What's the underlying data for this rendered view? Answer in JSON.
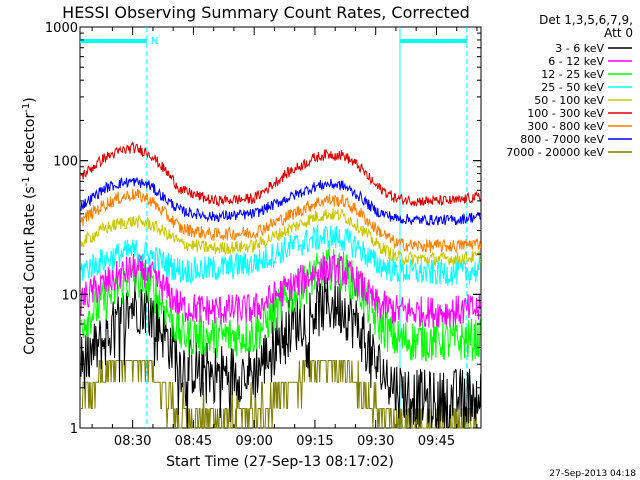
{
  "chart_data": {
    "type": "line",
    "title": "HESSI Observing Summary Count Rates, Corrected",
    "xlabel": "Start Time (27-Sep-13 08:17:02)",
    "ylabel_main": "Corrected Count Rate (s",
    "ylabel_sup1": "-1",
    "ylabel_mid": " detector",
    "ylabel_sup2": "-1",
    "ylabel_end": ")",
    "y_scale": "log",
    "ylim": [
      1,
      1000
    ],
    "x_start_minutes": 497.0,
    "xlim_minutes": [
      497.0,
      596.0
    ],
    "x_ticks": [
      {
        "minutes": 510,
        "label": "08:30"
      },
      {
        "minutes": 525,
        "label": "08:45"
      },
      {
        "minutes": 540,
        "label": "09:00"
      },
      {
        "minutes": 555,
        "label": "09:15"
      },
      {
        "minutes": 570,
        "label": "09:30"
      },
      {
        "minutes": 585,
        "label": "09:45"
      }
    ],
    "y_ticks": [
      {
        "value": 1,
        "label": "1"
      },
      {
        "value": 10,
        "label": "10"
      },
      {
        "value": 100,
        "label": "100"
      },
      {
        "value": 1000,
        "label": "1000"
      }
    ],
    "legend": {
      "placement": "right",
      "header": [
        "Det 1,3,5,6,7,9,",
        "Att 0"
      ]
    },
    "series": [
      {
        "name": "3 - 6 keV",
        "color": "#000000",
        "x_minutes": [
          497,
          503,
          507,
          510,
          514,
          518,
          522,
          530,
          540,
          548,
          555,
          558,
          562,
          566,
          570,
          575,
          580,
          585,
          590,
          594
        ],
        "y": [
          3.0,
          4.5,
          6.5,
          8.5,
          8.0,
          5.0,
          3.0,
          2.6,
          2.6,
          5.5,
          7.5,
          8.5,
          8.0,
          5.5,
          3.0,
          2.0,
          1.7,
          1.6,
          1.7,
          1.8
        ]
      },
      {
        "name": "6 - 12 keV",
        "color": "#ff00ff",
        "x_minutes": [
          497,
          503,
          507,
          510,
          514,
          518,
          522,
          530,
          540,
          548,
          555,
          558,
          562,
          566,
          570,
          575,
          580,
          585,
          590,
          594
        ],
        "y": [
          9.0,
          12.0,
          14.0,
          15.5,
          14.5,
          11.0,
          8.0,
          7.6,
          7.7,
          11.0,
          14.5,
          15.5,
          15.0,
          12.0,
          8.5,
          7.6,
          7.4,
          7.4,
          7.5,
          7.7
        ]
      },
      {
        "name": "12 - 25 keV",
        "color": "#00ff00",
        "x_minutes": [
          497,
          503,
          507,
          510,
          514,
          518,
          522,
          530,
          540,
          548,
          555,
          558,
          562,
          566,
          570,
          575,
          580,
          585,
          590,
          594
        ],
        "y": [
          6.0,
          9.0,
          11.5,
          13.0,
          12.0,
          8.0,
          5.0,
          4.8,
          5.0,
          9.0,
          14.0,
          15.5,
          15.0,
          11.0,
          6.5,
          4.6,
          4.5,
          4.5,
          4.5,
          4.6
        ]
      },
      {
        "name": "25 - 50 keV",
        "color": "#00ffff",
        "x_minutes": [
          497,
          503,
          507,
          510,
          514,
          518,
          522,
          530,
          540,
          548,
          555,
          558,
          562,
          566,
          570,
          575,
          580,
          585,
          590,
          594
        ],
        "y": [
          15.0,
          18.0,
          20.0,
          21.0,
          20.0,
          17.0,
          15.0,
          15.5,
          17.0,
          22.0,
          26.0,
          27.0,
          26.0,
          22.0,
          17.0,
          15.0,
          14.5,
          14.5,
          14.5,
          15.0
        ]
      },
      {
        "name": "50 - 100 keV",
        "color": "#c8c800",
        "x_minutes": [
          497,
          503,
          507,
          510,
          514,
          518,
          522,
          530,
          540,
          548,
          555,
          558,
          562,
          566,
          570,
          575,
          580,
          585,
          590,
          594
        ],
        "y": [
          24.0,
          31.0,
          34.0,
          35.0,
          34.0,
          29.0,
          24.0,
          22.0,
          23.0,
          30.0,
          38.0,
          40.0,
          39.0,
          32.0,
          24.0,
          19.0,
          18.5,
          18.5,
          18.5,
          19.0
        ]
      },
      {
        "name": "100 - 300 keV",
        "color": "#e00000",
        "x_minutes": [
          497,
          503,
          507,
          510,
          514,
          518,
          522,
          530,
          540,
          548,
          555,
          558,
          562,
          566,
          570,
          575,
          580,
          585,
          590,
          594
        ],
        "y": [
          75.0,
          105.0,
          118.0,
          125.0,
          115.0,
          85.0,
          60.0,
          50.0,
          52.0,
          80.0,
          105.0,
          112.0,
          110.0,
          90.0,
          65.0,
          52.0,
          50.0,
          50.0,
          50.0,
          53.0
        ]
      },
      {
        "name": "300 - 800 keV",
        "color": "#ff7f00",
        "x_minutes": [
          497,
          503,
          507,
          510,
          514,
          518,
          522,
          530,
          540,
          548,
          555,
          558,
          562,
          566,
          570,
          575,
          580,
          585,
          590,
          594
        ],
        "y": [
          35.0,
          47.0,
          53.0,
          56.0,
          52.0,
          40.0,
          31.0,
          28.0,
          29.0,
          38.0,
          48.0,
          51.0,
          50.0,
          41.0,
          31.0,
          24.0,
          23.0,
          23.0,
          23.0,
          24.0
        ]
      },
      {
        "name": "800 - 7000 keV",
        "color": "#0000ff",
        "x_minutes": [
          497,
          503,
          507,
          510,
          514,
          518,
          522,
          530,
          540,
          548,
          555,
          558,
          562,
          566,
          570,
          575,
          580,
          585,
          590,
          594
        ],
        "y": [
          45.0,
          62.0,
          68.0,
          70.0,
          66.0,
          52.0,
          42.0,
          38.0,
          40.0,
          52.0,
          64.0,
          67.0,
          65.0,
          54.0,
          42.0,
          37.0,
          36.0,
          36.0,
          36.0,
          38.0
        ]
      },
      {
        "name": "7000 - 20000 keV",
        "color": "#808000",
        "x_minutes": [
          497,
          502,
          506,
          510,
          514,
          518,
          522,
          530,
          540,
          548,
          555,
          558,
          562,
          566,
          570,
          575,
          580,
          585,
          590,
          594
        ],
        "y": [
          1.5,
          2.4,
          3.2,
          3.2,
          2.8,
          1.8,
          1.3,
          1.2,
          1.3,
          2.0,
          2.8,
          3.2,
          3.0,
          2.2,
          1.4,
          1.0,
          1.0,
          1.0,
          1.0,
          1.0
        ]
      }
    ],
    "annotations": {
      "night_bars": [
        [
          497.0,
          513.5
        ],
        [
          576.0,
          592.5
        ]
      ],
      "night_label": "N",
      "dashed_markers_minutes": [
        513.5,
        592.5
      ],
      "solid_markers_minutes": [
        576.0
      ]
    },
    "annotation_color": "#00ffff"
  },
  "footer": {
    "timestamp": "27-Sep-2013 04:18"
  }
}
